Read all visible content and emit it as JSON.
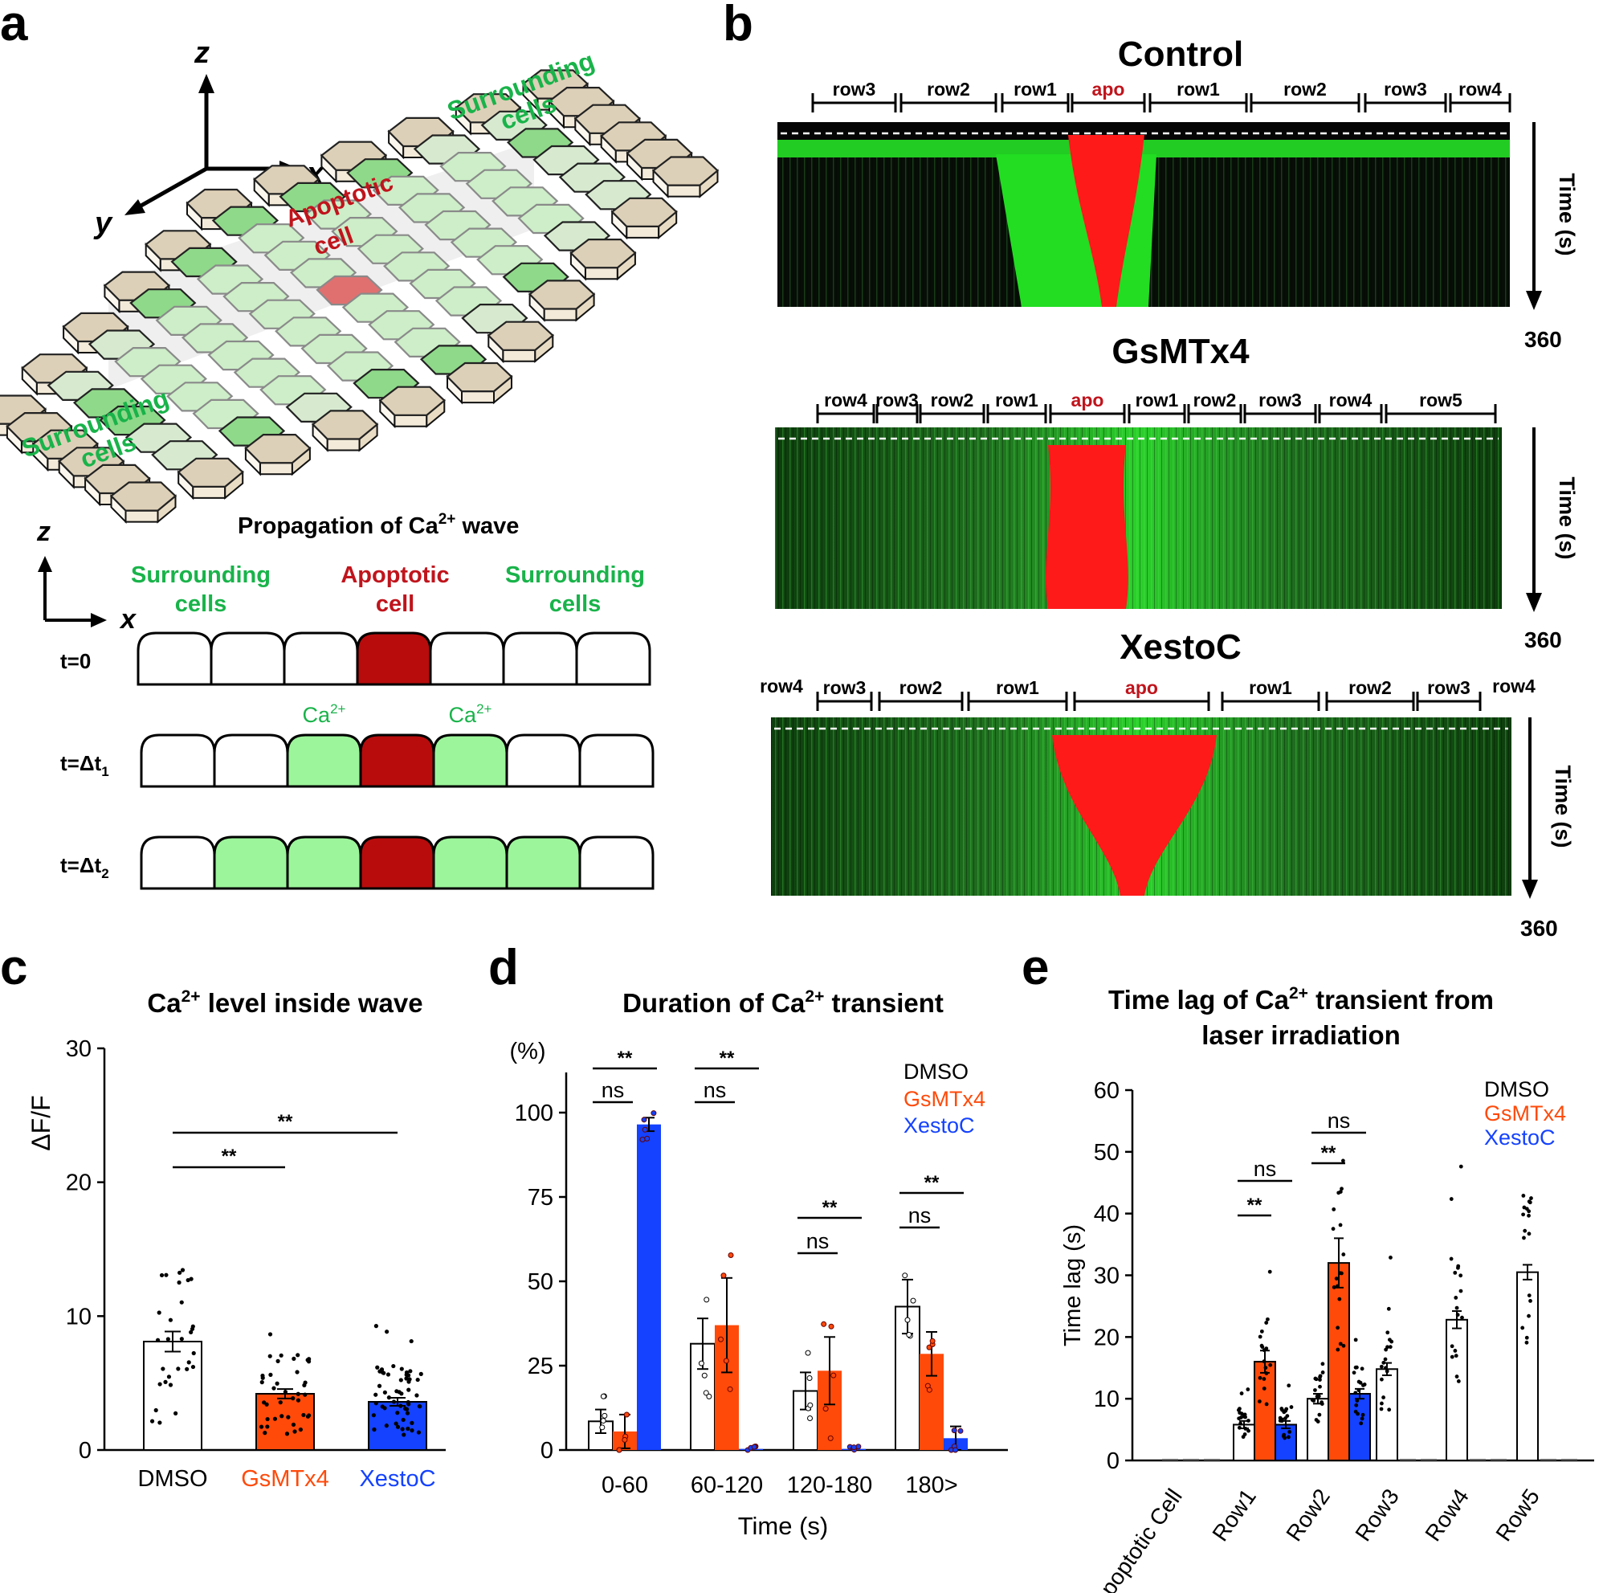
{
  "colors": {
    "green_text": "#19b34a",
    "red_text": "#c0141c",
    "orange": "#ff4a0a",
    "blue": "#1442ff",
    "cell_green": "#9cf59a",
    "cell_red": "#b80c0c",
    "kymo_green": "#22cc22",
    "kymo_red": "#ff1a1a"
  },
  "panel_a": {
    "letter": "a",
    "axis_z": "z",
    "axis_x": "x",
    "axis_y": "y",
    "surrounding_top": [
      "Surrounding",
      "cells"
    ],
    "surrounding_bottom": [
      "Surrounding",
      "cells"
    ],
    "apoptotic_label": [
      "Apoptotic",
      "cell"
    ],
    "prop_title_prefix": "Propagation of Ca",
    "prop_title_sup": "2+",
    "prop_title_suffix": " wave",
    "axis2_z": "z",
    "axis2_x": "x",
    "header_left": [
      "Surrounding",
      "cells"
    ],
    "header_mid": [
      "Apoptotic",
      "cell"
    ],
    "header_right": [
      "Surrounding",
      "cells"
    ],
    "ca_label_base": "Ca",
    "ca_label_sup": "2+",
    "rows": [
      {
        "label": "t=0",
        "sub": "",
        "states": [
          "w",
          "w",
          "w",
          "r",
          "w",
          "w",
          "w"
        ],
        "ca": false
      },
      {
        "label": "t=Δt",
        "sub": "1",
        "states": [
          "w",
          "w",
          "g",
          "r",
          "g",
          "w",
          "w"
        ],
        "ca": true
      },
      {
        "label": "t=Δt",
        "sub": "2",
        "states": [
          "w",
          "g",
          "g",
          "r",
          "g",
          "g",
          "w"
        ],
        "ca": false
      }
    ]
  },
  "panel_b": {
    "letter": "b",
    "time_label": "Time (s)",
    "kymos": [
      {
        "title": "Control",
        "end_label": "360",
        "segments": [
          {
            "label": "row3",
            "x1": 1012,
            "x2": 1115
          },
          {
            "label": "row2",
            "x1": 1122,
            "x2": 1240
          },
          {
            "label": "row1",
            "x1": 1248,
            "x2": 1330
          },
          {
            "label": "apo",
            "x1": 1335,
            "x2": 1425,
            "apo": true
          },
          {
            "label": "row1",
            "x1": 1432,
            "x2": 1552
          },
          {
            "label": "row2",
            "x1": 1558,
            "x2": 1692
          },
          {
            "label": "row3",
            "x1": 1700,
            "x2": 1800
          },
          {
            "label": "row4",
            "x1": 1806,
            "x2": 1880
          }
        ]
      },
      {
        "title": "GsMTx4",
        "end_label": "360",
        "segments": [
          {
            "label": "row4",
            "x1": 1018,
            "x2": 1088
          },
          {
            "label": "row3",
            "x1": 1092,
            "x2": 1142
          },
          {
            "label": "row2",
            "x1": 1146,
            "x2": 1225
          },
          {
            "label": "row1",
            "x1": 1230,
            "x2": 1302
          },
          {
            "label": "apo",
            "x1": 1308,
            "x2": 1400,
            "apo": true
          },
          {
            "label": "row1",
            "x1": 1406,
            "x2": 1475
          },
          {
            "label": "row2",
            "x1": 1480,
            "x2": 1545
          },
          {
            "label": "row3",
            "x1": 1550,
            "x2": 1638
          },
          {
            "label": "row4",
            "x1": 1643,
            "x2": 1720
          },
          {
            "label": "row5",
            "x1": 1726,
            "x2": 1862
          }
        ]
      },
      {
        "title": "XestoC",
        "end_label": "360",
        "outer_left": "row4",
        "outer_right": "row4",
        "segments": [
          {
            "label": "row3",
            "x1": 1018,
            "x2": 1085
          },
          {
            "label": "row2",
            "x1": 1095,
            "x2": 1198
          },
          {
            "label": "row1",
            "x1": 1206,
            "x2": 1328
          },
          {
            "label": "apo",
            "x1": 1338,
            "x2": 1505,
            "apo": true
          },
          {
            "label": "row1",
            "x1": 1522,
            "x2": 1642
          },
          {
            "label": "row2",
            "x1": 1652,
            "x2": 1760
          },
          {
            "label": "row3",
            "x1": 1765,
            "x2": 1843
          }
        ]
      }
    ]
  },
  "chart_data": [
    {
      "panel": "c",
      "type": "bar",
      "title_prefix": "Ca",
      "title_sup": "2+",
      "title_suffix": " level inside wave",
      "ylabel": "ΔF/F",
      "ylim": [
        0,
        30
      ],
      "yticks": [
        0,
        10,
        20,
        30
      ],
      "categories": [
        "DMSO",
        "GsMTx4",
        "XestoC"
      ],
      "values": [
        8.1,
        4.2,
        3.6
      ],
      "errors": [
        0.75,
        0.35,
        0.3
      ],
      "significance": [
        {
          "from": 0,
          "to": 1,
          "label": "**"
        },
        {
          "from": 0,
          "to": 2,
          "label": "**"
        }
      ]
    },
    {
      "panel": "d",
      "type": "bar",
      "title_prefix": "Duration of Ca",
      "title_sup": "2+",
      "title_suffix": " transient",
      "ylabel": "(%)",
      "xlabel": "Time (s)",
      "ylim": [
        0,
        100
      ],
      "yticks": [
        0,
        25,
        50,
        75,
        100
      ],
      "categories": [
        "0-60",
        "60-120",
        "120-180",
        "180>"
      ],
      "series": [
        {
          "name": "DMSO",
          "values": [
            8.5,
            31.5,
            17.5,
            42.5
          ],
          "errors": [
            3.5,
            7.5,
            5.5,
            8.0
          ]
        },
        {
          "name": "GsMTx4",
          "values": [
            5.5,
            37.0,
            23.5,
            28.5
          ],
          "errors": [
            5.0,
            14.0,
            10.0,
            6.5
          ]
        },
        {
          "name": "XestoC",
          "values": [
            96.5,
            0.3,
            0.3,
            3.5
          ],
          "errors": [
            2.0,
            0.0,
            0.0,
            3.5
          ]
        }
      ],
      "significance": [
        {
          "group": 0,
          "ns": "ns",
          "star": "**"
        },
        {
          "group": 1,
          "ns": "ns",
          "star": "**"
        },
        {
          "group": 2,
          "ns": "ns",
          "star": "**"
        },
        {
          "group": 3,
          "ns": "ns",
          "star": "**"
        }
      ]
    },
    {
      "panel": "e",
      "type": "bar",
      "title_line1_prefix": "Time lag of Ca",
      "title_line1_sup": "2+",
      "title_line1_suffix": " transient from",
      "title_line2": "laser irradiation",
      "ylabel": "Time lag (s)",
      "ylim": [
        0,
        60
      ],
      "yticks": [
        0,
        10,
        20,
        30,
        40,
        50,
        60
      ],
      "categories": [
        "Apoptotic Cell",
        "Row1",
        "Row2",
        "Row3",
        "Row4",
        "Row5"
      ],
      "series": [
        {
          "name": "DMSO",
          "values": [
            0,
            5.8,
            10.0,
            14.8,
            22.8,
            30.5
          ],
          "errors": [
            0,
            0.6,
            0.8,
            1.0,
            1.4,
            1.2
          ]
        },
        {
          "name": "GsMTx4",
          "values": [
            0,
            16.0,
            32.0,
            0,
            0,
            0
          ],
          "errors": [
            0,
            1.8,
            4.0,
            0,
            0,
            0
          ]
        },
        {
          "name": "XestoC",
          "values": [
            0,
            5.8,
            10.8,
            0,
            0,
            0
          ],
          "errors": [
            0,
            0.6,
            0.8,
            0,
            0,
            0
          ]
        }
      ],
      "significance": [
        {
          "group": 1,
          "star": "**",
          "ns": "ns"
        },
        {
          "group": 2,
          "star": "**",
          "ns": "ns"
        }
      ]
    }
  ],
  "panel_letters": {
    "c": "c",
    "d": "d",
    "e": "e"
  }
}
